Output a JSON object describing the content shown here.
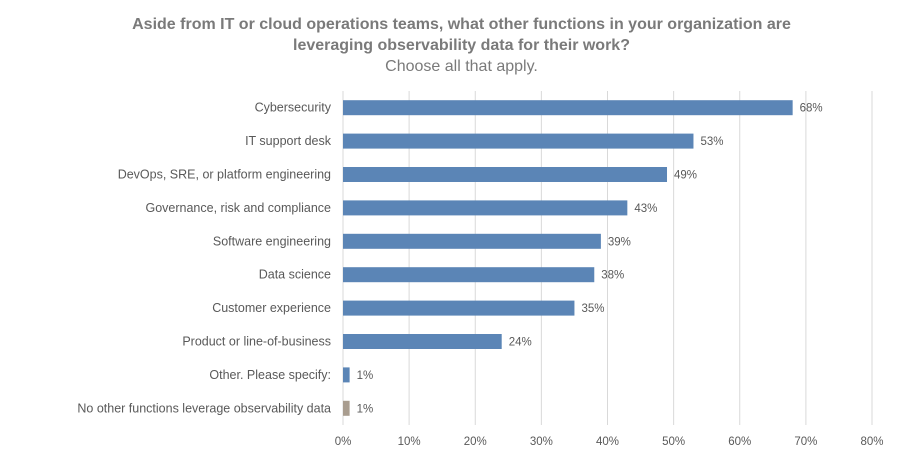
{
  "chart_data": {
    "type": "bar",
    "orientation": "horizontal",
    "title_lines": [
      "Aside from IT or cloud operations teams, what other functions in your organization are",
      "leveraging observability data for their work?"
    ],
    "subtitle": "Choose all that apply.",
    "categories": [
      "Cybersecurity",
      "IT support desk",
      "DevOps, SRE, or platform engineering",
      "Governance, risk and compliance",
      "Software engineering",
      "Data science",
      "Customer experience",
      "Product or line-of-business",
      "Other. Please specify:",
      "No other functions leverage observability data"
    ],
    "values": [
      68,
      53,
      49,
      43,
      39,
      38,
      35,
      24,
      1,
      1
    ],
    "value_labels": [
      "68%",
      "53%",
      "49%",
      "43%",
      "39%",
      "38%",
      "35%",
      "24%",
      "1%",
      "1%"
    ],
    "bar_colors": [
      "#5b85b6",
      "#5b85b6",
      "#5b85b6",
      "#5b85b6",
      "#5b85b6",
      "#5b85b6",
      "#5b85b6",
      "#5b85b6",
      "#5b85b6",
      "#a99d8f"
    ],
    "xlim": [
      0,
      80
    ],
    "xticks": [
      0,
      10,
      20,
      30,
      40,
      50,
      60,
      70,
      80
    ],
    "xtick_labels": [
      "0%",
      "10%",
      "20%",
      "30%",
      "40%",
      "50%",
      "60%",
      "70%",
      "80%"
    ],
    "grid": true
  }
}
